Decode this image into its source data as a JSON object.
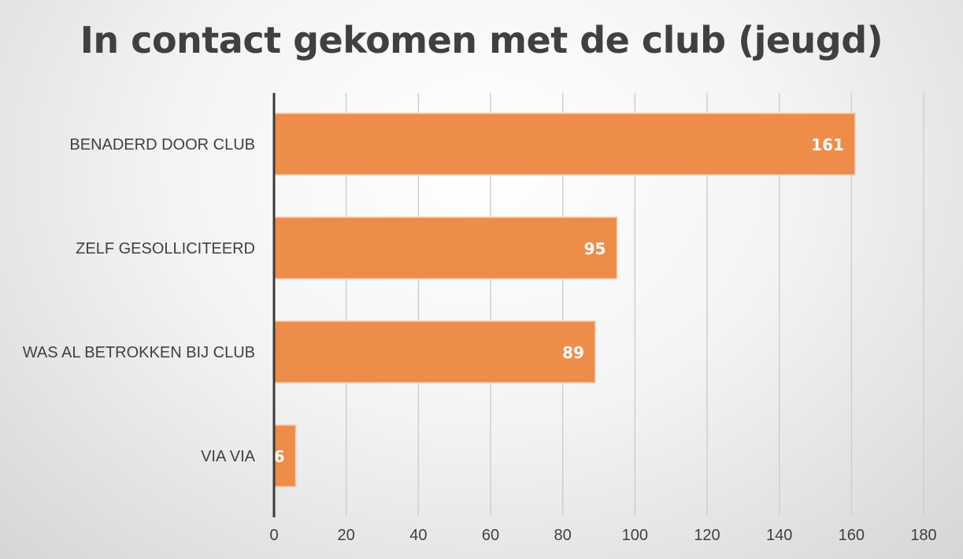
{
  "chart_data": {
    "type": "bar",
    "orientation": "horizontal",
    "title": "In contact gekomen met de club (jeugd)",
    "categories": [
      "BENADERD DOOR CLUB",
      "ZELF GESOLLICITEERD",
      "WAS AL BETROKKEN BIJ CLUB",
      "VIA VIA"
    ],
    "values": [
      161,
      95,
      89,
      6
    ],
    "xlim": [
      0,
      180
    ],
    "xticks": [
      0,
      20,
      40,
      60,
      80,
      100,
      120,
      140,
      160,
      180
    ],
    "grid": "vertical",
    "data_labels": true,
    "bar_color": "#EE8C4A"
  }
}
